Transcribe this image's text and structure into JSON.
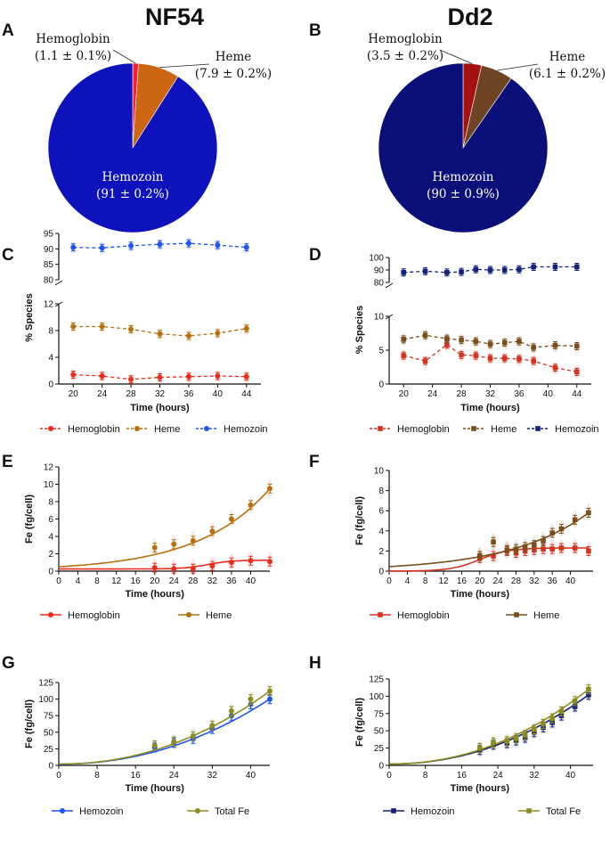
{
  "panels": {
    "A": "A",
    "B": "B",
    "C": "C",
    "D": "D",
    "E": "E",
    "F": "F",
    "G": "G",
    "H": "H"
  },
  "titles": {
    "left": "NF54",
    "right": "Dd2"
  },
  "series_colors": {
    "nf54": {
      "Hemoglobin": "#ef2b1c",
      "Heme": "#b8700f",
      "Hemozoin": "#1f55f2",
      "Total Fe": "#8c8c1e"
    },
    "dd2": {
      "Hemoglobin": "#d8311f",
      "Heme": "#7a4f1c",
      "Hemozoin": "#14207e",
      "Total Fe": "#8c8c1e"
    },
    "pie_nf54": {
      "Hemoglobin": "#ff1a2e",
      "Heme": "#cc6612",
      "Hemozoin": "#0e12bd"
    },
    "pie_dd2": {
      "Hemoglobin": "#a31111",
      "Heme": "#6e4425",
      "Hemozoin": "#0b0f7a"
    }
  },
  "chart_data": [
    {
      "panel": "A",
      "type": "pie",
      "title": "NF54",
      "slices": [
        {
          "name": "Hemozoin",
          "value": 91,
          "label": "Hemozoin",
          "value_text": "(91 ± 0.2%)"
        },
        {
          "name": "Hemoglobin",
          "value": 1.1,
          "label": "Hemoglobin",
          "value_text": "(1.1 ± 0.1%)"
        },
        {
          "name": "Heme",
          "value": 7.9,
          "label": "Heme",
          "value_text": "(7.9 ± 0.2%)"
        }
      ]
    },
    {
      "panel": "B",
      "type": "pie",
      "title": "Dd2",
      "slices": [
        {
          "name": "Hemozoin",
          "value": 90,
          "label": "Hemozoin",
          "value_text": "(90 ± 0.9%)"
        },
        {
          "name": "Hemoglobin",
          "value": 3.5,
          "label": "Hemoglobin",
          "value_text": "(3.5 ± 0.2%)"
        },
        {
          "name": "Heme",
          "value": 6.1,
          "label": "Heme",
          "value_text": "(6.1 ± 0.2%)"
        }
      ]
    },
    {
      "panel": "C",
      "type": "line",
      "strain": "nf54",
      "xlabel": "Time (hours)",
      "ylabel": "% Species",
      "xticks": [
        20,
        24,
        28,
        32,
        36,
        40,
        44
      ],
      "upper_yticks": [
        80,
        85,
        90,
        95
      ],
      "lower_yticks": [
        0,
        4,
        8,
        12
      ],
      "series": [
        {
          "name": "Hemoglobin",
          "x": [
            20,
            24,
            28,
            32,
            36,
            40,
            44
          ],
          "y": [
            1.4,
            1.2,
            0.7,
            1.0,
            1.1,
            1.2,
            1.1
          ]
        },
        {
          "name": "Heme",
          "x": [
            20,
            24,
            28,
            32,
            36,
            40,
            44
          ],
          "y": [
            8.6,
            8.6,
            8.2,
            7.5,
            7.2,
            7.6,
            8.3
          ]
        },
        {
          "name": "Hemozoin",
          "x": [
            20,
            24,
            28,
            32,
            36,
            40,
            44
          ],
          "y": [
            90.5,
            90.3,
            91.0,
            91.5,
            91.8,
            91.2,
            90.5
          ]
        }
      ]
    },
    {
      "panel": "D",
      "type": "line",
      "strain": "dd2",
      "xlabel": "Time (hours)",
      "ylabel": "% Species",
      "xticks": [
        20,
        24,
        28,
        32,
        36,
        40,
        44
      ],
      "upper_yticks": [
        80,
        90,
        100
      ],
      "lower_yticks": [
        0,
        5,
        10
      ],
      "series": [
        {
          "name": "Hemoglobin",
          "x": [
            20,
            23,
            26,
            28,
            30,
            32,
            34,
            36,
            38,
            41,
            44
          ],
          "y": [
            4.2,
            3.4,
            5.8,
            4.3,
            4.2,
            3.8,
            3.8,
            3.7,
            3.4,
            2.4,
            1.8
          ]
        },
        {
          "name": "Heme",
          "x": [
            20,
            23,
            26,
            28,
            30,
            32,
            34,
            36,
            38,
            41,
            44
          ],
          "y": [
            6.6,
            7.2,
            6.7,
            6.5,
            6.3,
            5.9,
            6.1,
            6.3,
            5.4,
            5.7,
            5.6
          ]
        },
        {
          "name": "Hemozoin",
          "x": [
            20,
            23,
            26,
            28,
            30,
            32,
            34,
            36,
            38,
            41,
            44
          ],
          "y": [
            88,
            89,
            88,
            88.5,
            90.5,
            90,
            90,
            90.5,
            92.5,
            92.5,
            92.5
          ]
        }
      ]
    },
    {
      "panel": "E",
      "type": "line",
      "strain": "nf54",
      "xlabel": "Time (hours)",
      "ylabel": "Fe (fg/cell)",
      "xlim": [
        0,
        44
      ],
      "ylim": [
        0,
        12
      ],
      "xticks": [
        0,
        4,
        8,
        12,
        16,
        20,
        24,
        28,
        32,
        36,
        40
      ],
      "yticks": [
        0,
        2,
        4,
        6,
        8,
        10,
        12
      ],
      "series": [
        {
          "name": "Hemoglobin",
          "x": [
            20,
            24,
            28,
            32,
            36,
            40,
            44
          ],
          "y": [
            0.4,
            0.3,
            0.3,
            0.6,
            1.0,
            1.2,
            1.1
          ]
        },
        {
          "name": "Heme",
          "x": [
            20,
            24,
            28,
            32,
            36,
            40,
            44
          ],
          "y": [
            2.7,
            3.1,
            3.5,
            4.6,
            6.0,
            7.6,
            9.5
          ]
        }
      ]
    },
    {
      "panel": "F",
      "type": "line",
      "strain": "dd2",
      "xlabel": "Time (hours)",
      "ylabel": "Fe (fg/cell)",
      "xlim": [
        0,
        45
      ],
      "ylim": [
        0,
        10
      ],
      "xticks": [
        0,
        4,
        8,
        12,
        16,
        20,
        24,
        28,
        32,
        36,
        40
      ],
      "yticks": [
        0,
        2,
        4,
        6,
        8,
        10
      ],
      "series": [
        {
          "name": "Hemoglobin",
          "x": [
            20,
            23,
            26,
            28,
            30,
            32,
            34,
            36,
            38,
            41,
            44
          ],
          "y": [
            1.3,
            1.5,
            2.0,
            1.8,
            2.0,
            2.1,
            2.2,
            2.2,
            2.3,
            2.3,
            2.0
          ]
        },
        {
          "name": "Heme",
          "x": [
            20,
            23,
            26,
            28,
            30,
            32,
            34,
            36,
            38,
            41,
            44
          ],
          "y": [
            1.5,
            2.9,
            2.1,
            2.2,
            2.4,
            2.6,
            3.0,
            3.8,
            4.2,
            5.1,
            5.8
          ]
        }
      ]
    },
    {
      "panel": "G",
      "type": "line",
      "strain": "nf54",
      "xlabel": "Time (hours)",
      "ylabel": "Fe (fg/cell)",
      "xlim": [
        0,
        44
      ],
      "ylim": [
        0,
        125
      ],
      "xticks": [
        0,
        8,
        16,
        24,
        32,
        40
      ],
      "yticks": [
        0,
        25,
        50,
        75,
        100,
        125
      ],
      "series": [
        {
          "name": "Hemozoin",
          "x": [
            20,
            24,
            28,
            32,
            36,
            40,
            44
          ],
          "y": [
            27,
            34,
            40,
            55,
            75,
            92,
            100
          ]
        },
        {
          "name": "Total Fe",
          "x": [
            20,
            24,
            28,
            32,
            36,
            40,
            44
          ],
          "y": [
            30,
            36,
            44,
            60,
            82,
            100,
            112
          ]
        }
      ]
    },
    {
      "panel": "H",
      "type": "line",
      "strain": "dd2",
      "xlabel": "Time (hours)",
      "ylabel": "Fe (fg/cell)",
      "xlim": [
        0,
        45
      ],
      "ylim": [
        0,
        125
      ],
      "xticks": [
        0,
        8,
        16,
        24,
        32,
        40
      ],
      "yticks": [
        0,
        25,
        50,
        75,
        100,
        125
      ],
      "series": [
        {
          "name": "Hemozoin",
          "x": [
            20,
            23,
            26,
            28,
            30,
            32,
            34,
            36,
            38,
            41,
            44
          ],
          "y": [
            22,
            30,
            32,
            36,
            40,
            48,
            55,
            62,
            72,
            85,
            102
          ]
        },
        {
          "name": "Total Fe",
          "x": [
            20,
            23,
            26,
            28,
            30,
            32,
            34,
            36,
            38,
            41,
            44
          ],
          "y": [
            25,
            33,
            35,
            39,
            44,
            52,
            60,
            68,
            78,
            93,
            110
          ]
        }
      ]
    }
  ]
}
